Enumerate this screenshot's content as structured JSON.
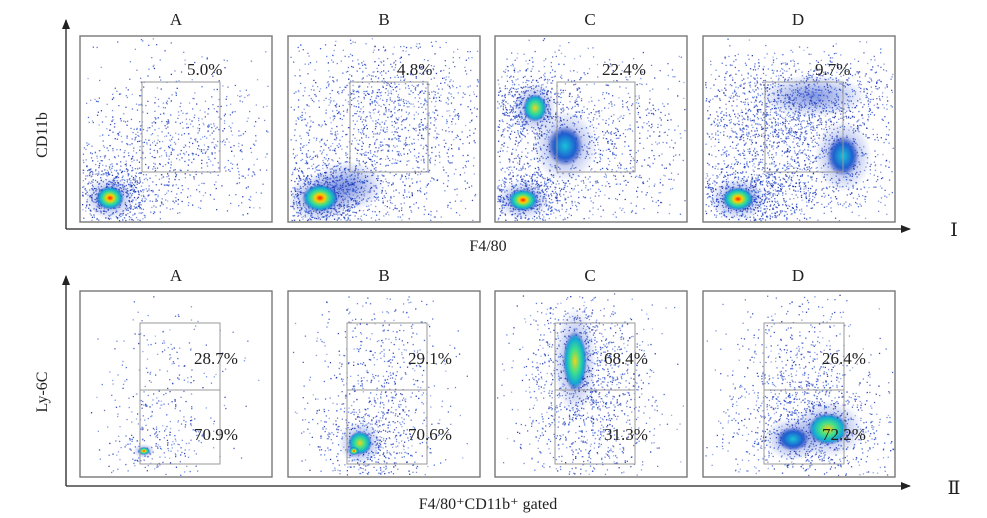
{
  "chart_data": [
    {
      "type": "scatter",
      "row_marker": "Ⅰ",
      "xlabel": "F4/80",
      "ylabel": "CD11b",
      "panels": [
        {
          "title": "A",
          "gate_values": [
            "5.0%"
          ]
        },
        {
          "title": "B",
          "gate_values": [
            "4.8%"
          ]
        },
        {
          "title": "C",
          "gate_values": [
            "22.4%"
          ]
        },
        {
          "title": "D",
          "gate_values": [
            "9.7%"
          ]
        }
      ]
    },
    {
      "type": "scatter",
      "row_marker": "Ⅱ",
      "xlabel": "F4/80⁺CD11b⁺ gated",
      "ylabel": "Ly-6C",
      "panels": [
        {
          "title": "A",
          "gate_values": [
            "28.7%",
            "70.9%"
          ]
        },
        {
          "title": "B",
          "gate_values": [
            "29.1%",
            "70.6%"
          ]
        },
        {
          "title": "C",
          "gate_values": [
            "68.4%",
            "31.3%"
          ]
        },
        {
          "title": "D",
          "gate_values": [
            "26.4%",
            "72.2%"
          ]
        }
      ]
    }
  ],
  "colors": {
    "density_low": "#1a2fb0",
    "density_mid": "#19c3d8",
    "density_high": "#ff2a00",
    "frame": "#777777",
    "gate": "#999999"
  }
}
